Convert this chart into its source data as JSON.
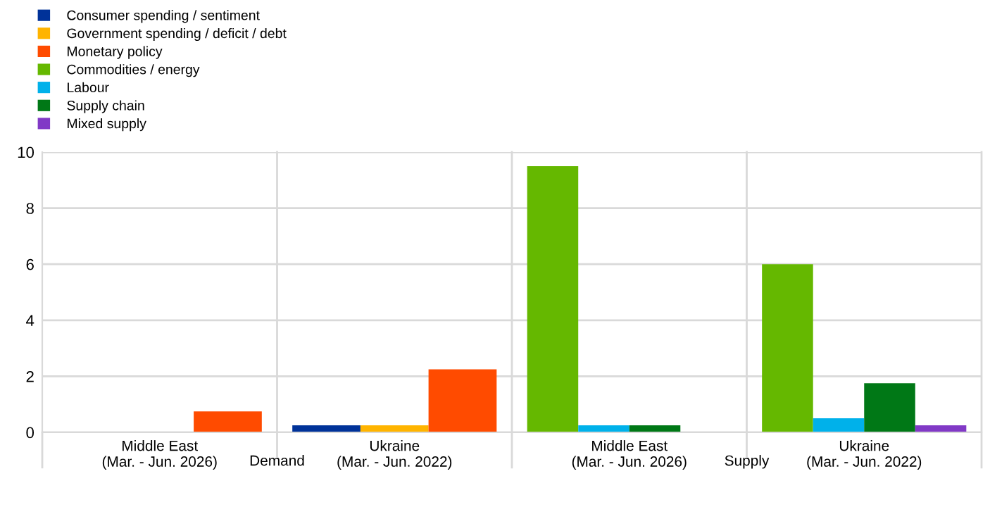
{
  "chart_data": {
    "type": "bar",
    "categories": [
      "Middle East\n(Mar. - Jun. 2026)",
      "Ukraine\n(Mar. - Jun. 2022)",
      "Middle East\n(Mar. - Jun. 2026)",
      "Ukraine\n(Mar. - Jun. 2022)"
    ],
    "series": [
      {
        "name": "Consumer spending / sentiment",
        "color": "#003299",
        "values": [
          0,
          0.25,
          null,
          null
        ]
      },
      {
        "name": "Government spending / deficit / debt",
        "color": "#ffb400",
        "values": [
          0,
          0.25,
          null,
          null
        ]
      },
      {
        "name": "Monetary policy",
        "color": "#ff4b00",
        "values": [
          0.75,
          2.25,
          null,
          null
        ]
      },
      {
        "name": "Commodities / energy",
        "color": "#65b800",
        "values": [
          null,
          null,
          9.5,
          6.0
        ]
      },
      {
        "name": "Labour",
        "color": "#00b1ea",
        "values": [
          null,
          null,
          0.25,
          0.5
        ]
      },
      {
        "name": "Supply chain",
        "color": "#007816",
        "values": [
          null,
          null,
          0.25,
          1.75
        ]
      },
      {
        "name": "Mixed supply",
        "color": "#8139c6",
        "values": [
          null,
          null,
          0,
          0.25
        ]
      }
    ],
    "annotations": [
      "Demand",
      "Supply"
    ],
    "ylim": [
      0,
      10
    ],
    "yticks": [
      0,
      2,
      4,
      6,
      8,
      10
    ],
    "grid": "y",
    "legend": "top left"
  }
}
